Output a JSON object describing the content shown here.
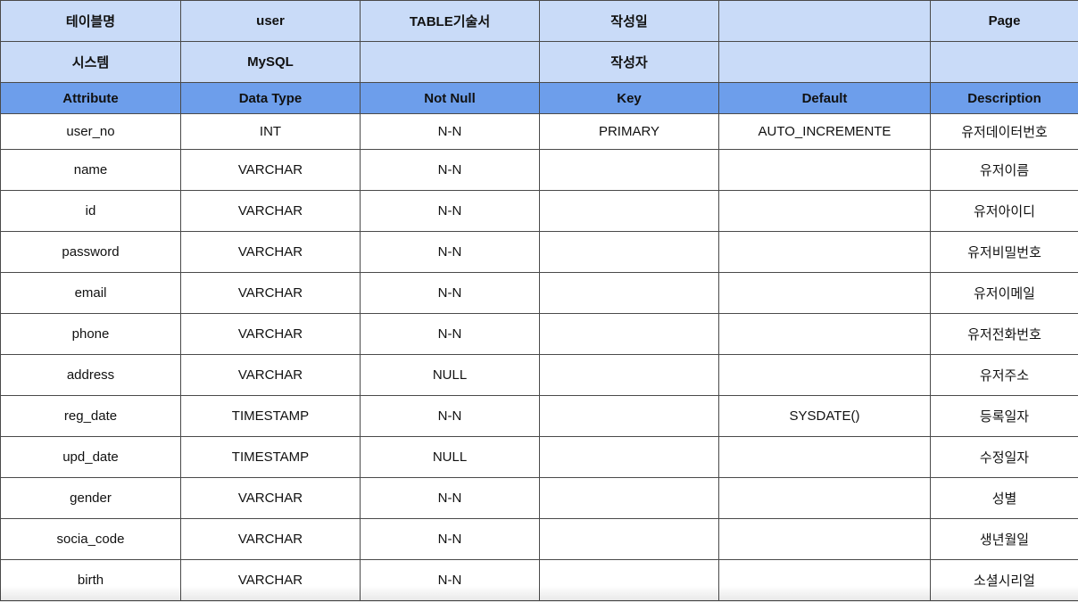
{
  "meta": {
    "row1": {
      "table_name_label": "테이블명",
      "table_name_value": "user",
      "doc_title": "TABLE기술서",
      "written_date_label": "작성일",
      "written_date_value": "",
      "page_label": "Page"
    },
    "row2": {
      "system_label": "시스템",
      "system_value": "MySQL",
      "empty1": "",
      "author_label": "작성자",
      "author_value": "",
      "empty2": ""
    }
  },
  "columns": {
    "attribute": "Attribute",
    "data_type": "Data Type",
    "not_null": "Not Null",
    "key": "Key",
    "default": "Default",
    "description": "Description"
  },
  "rows": [
    {
      "attribute": "user_no",
      "data_type": "INT",
      "not_null": "N-N",
      "key": "PRIMARY",
      "default": "AUTO_INCREMENTE",
      "description": "유저데이터번호"
    },
    {
      "attribute": "name",
      "data_type": "VARCHAR",
      "not_null": "N-N",
      "key": "",
      "default": "",
      "description": "유저이름"
    },
    {
      "attribute": "id",
      "data_type": "VARCHAR",
      "not_null": "N-N",
      "key": "",
      "default": "",
      "description": "유저아이디"
    },
    {
      "attribute": "password",
      "data_type": "VARCHAR",
      "not_null": "N-N",
      "key": "",
      "default": "",
      "description": "유저비밀번호"
    },
    {
      "attribute": "email",
      "data_type": "VARCHAR",
      "not_null": "N-N",
      "key": "",
      "default": "",
      "description": "유저이메일"
    },
    {
      "attribute": "phone",
      "data_type": "VARCHAR",
      "not_null": "N-N",
      "key": "",
      "default": "",
      "description": "유저전화번호"
    },
    {
      "attribute": "address",
      "data_type": "VARCHAR",
      "not_null": "NULL",
      "key": "",
      "default": "",
      "description": "유저주소"
    },
    {
      "attribute": "reg_date",
      "data_type": "TIMESTAMP",
      "not_null": "N-N",
      "key": "",
      "default": "SYSDATE()",
      "description": "등록일자"
    },
    {
      "attribute": "upd_date",
      "data_type": "TIMESTAMP",
      "not_null": "NULL",
      "key": "",
      "default": "",
      "description": "수정일자"
    },
    {
      "attribute": "gender",
      "data_type": "VARCHAR",
      "not_null": "N-N",
      "key": "",
      "default": "",
      "description": "성별"
    },
    {
      "attribute": "socia_code",
      "data_type": "VARCHAR",
      "not_null": "N-N",
      "key": "",
      "default": "",
      "description": "생년월일"
    },
    {
      "attribute": "birth",
      "data_type": "VARCHAR",
      "not_null": "N-N",
      "key": "",
      "default": "",
      "description": "소셜시리얼"
    }
  ]
}
